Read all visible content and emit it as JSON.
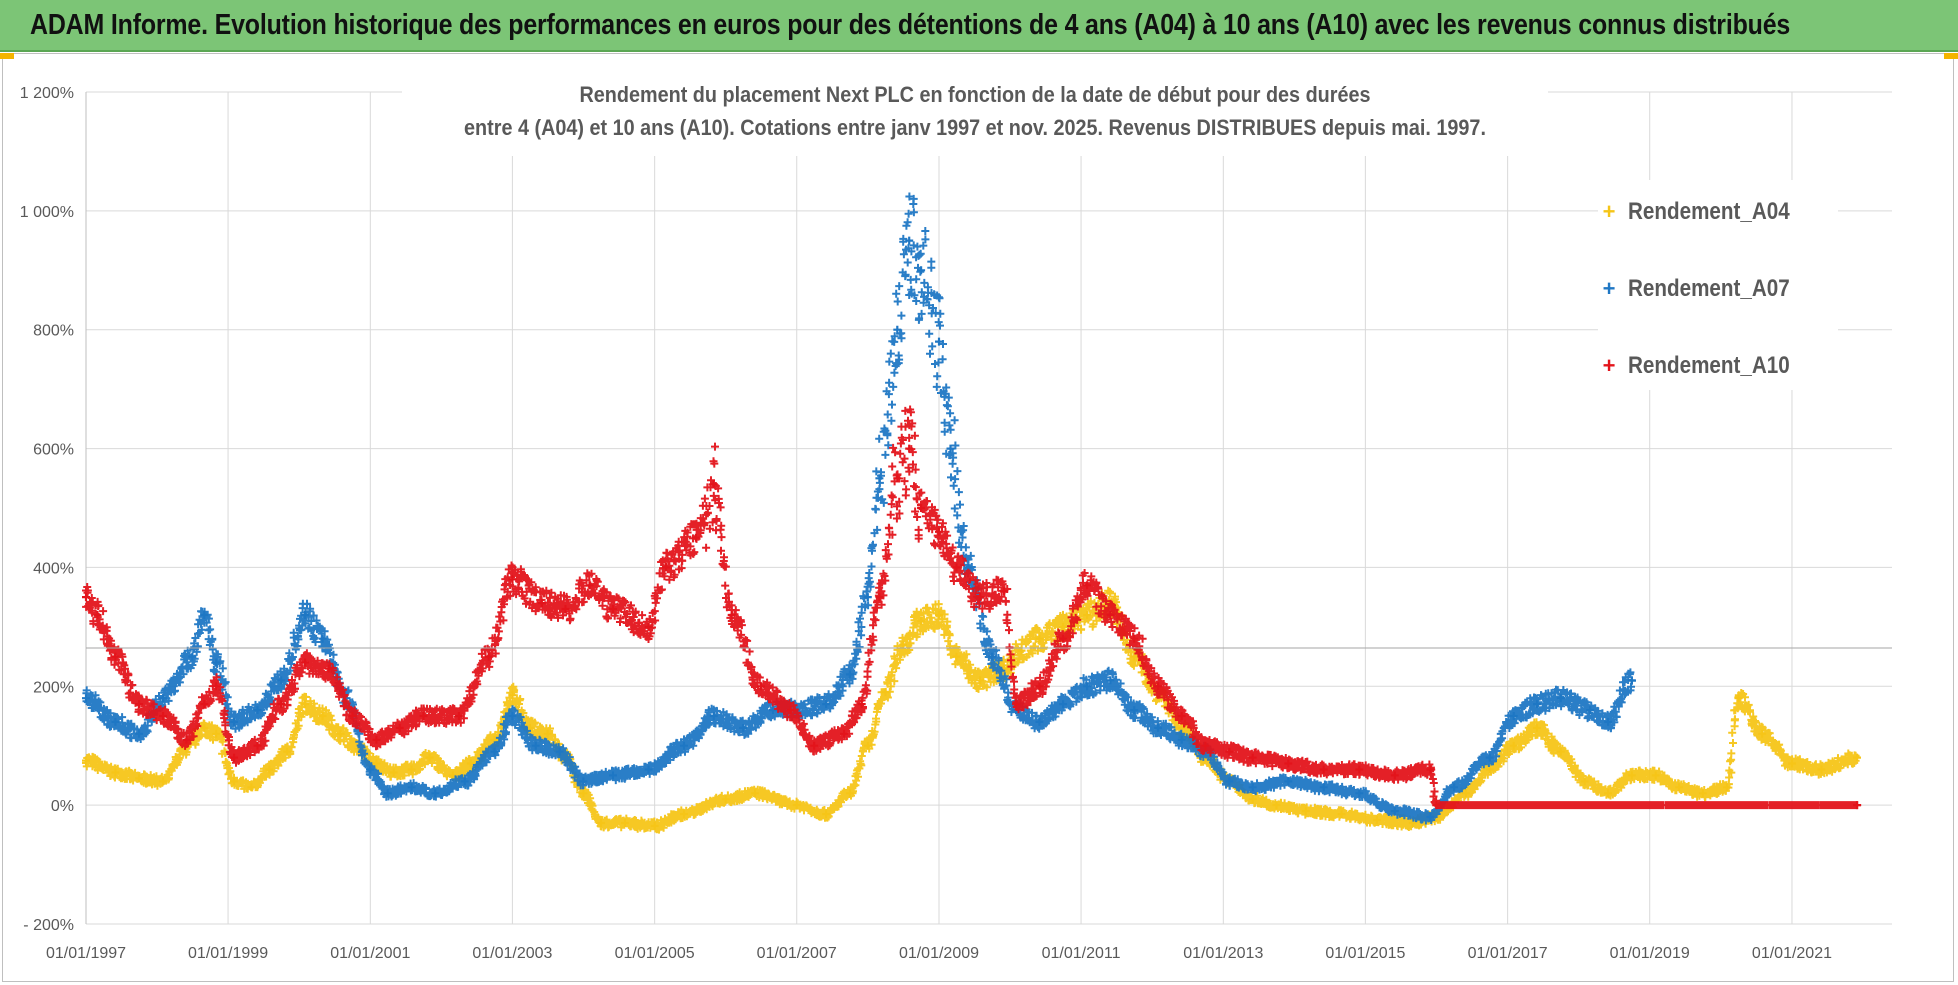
{
  "header": {
    "title": "ADAM Informe. Evolution historique des performances en euros pour des détentions de 4 ans (A04) à 10 ans (A10) avec les revenus connus distribués"
  },
  "chart_data": {
    "type": "scatter",
    "title_lines": [
      "Rendement du placement Next PLC en fonction de la date de début pour des durées",
      "entre 4 (A04) et 10 ans (A10). Cotations entre janv 1997 et nov. 2025. Revenus DISTRIBUES depuis mai. 1997."
    ],
    "xlabel": "",
    "ylabel": "",
    "x_range": [
      "1997-01-01",
      "2021-12-31"
    ],
    "ylim": [
      -200,
      1200
    ],
    "y_tick_values": [
      -200,
      0,
      200,
      400,
      600,
      800,
      1000,
      1200
    ],
    "y_tick_labels": [
      "- 200%",
      "0%",
      "200%",
      "400%",
      "600%",
      "800%",
      "1 000%",
      "1 200%"
    ],
    "x_tick_values": [
      "1997-01-01",
      "1999-01-01",
      "2001-01-01",
      "2003-01-01",
      "2005-01-01",
      "2007-01-01",
      "2009-01-01",
      "2011-01-01",
      "2013-01-01",
      "2015-01-01",
      "2017-01-01",
      "2019-01-01",
      "2021-01-01"
    ],
    "x_tick_labels": [
      "01/01/1997",
      "01/01/1999",
      "01/01/2001",
      "01/01/2003",
      "01/01/2005",
      "01/01/2007",
      "01/01/2009",
      "01/01/2011",
      "01/01/2013",
      "01/01/2015",
      "01/01/2017",
      "01/01/2019",
      "01/01/2021"
    ],
    "grid": true,
    "legend_position": "top-right",
    "series": [
      {
        "name": "Rendement_A04",
        "color": "#f5c518",
        "points": [
          [
            "1997-01-01",
            75
          ],
          [
            "1997-06-01",
            55
          ],
          [
            "1997-10-01",
            45
          ],
          [
            "1998-02-01",
            40
          ],
          [
            "1998-06-01",
            95
          ],
          [
            "1998-09-01",
            130
          ],
          [
            "1998-11-01",
            120
          ],
          [
            "1999-02-01",
            40
          ],
          [
            "1999-05-01",
            30
          ],
          [
            "1999-08-01",
            60
          ],
          [
            "1999-11-01",
            90
          ],
          [
            "2000-02-01",
            170
          ],
          [
            "2000-05-01",
            150
          ],
          [
            "2000-08-01",
            120
          ],
          [
            "2000-11-01",
            95
          ],
          [
            "2001-02-01",
            70
          ],
          [
            "2001-05-01",
            55
          ],
          [
            "2001-08-01",
            60
          ],
          [
            "2001-11-01",
            80
          ],
          [
            "2002-03-01",
            50
          ],
          [
            "2002-06-01",
            70
          ],
          [
            "2002-10-01",
            110
          ],
          [
            "2003-01-01",
            185
          ],
          [
            "2003-04-01",
            130
          ],
          [
            "2003-07-01",
            120
          ],
          [
            "2003-10-01",
            80
          ],
          [
            "2004-01-01",
            20
          ],
          [
            "2004-04-01",
            -30
          ],
          [
            "2004-08-01",
            -30
          ],
          [
            "2005-01-01",
            -35
          ],
          [
            "2005-06-01",
            -15
          ],
          [
            "2006-01-01",
            10
          ],
          [
            "2006-06-01",
            20
          ],
          [
            "2007-01-01",
            0
          ],
          [
            "2007-06-01",
            -15
          ],
          [
            "2007-10-01",
            20
          ],
          [
            "2008-01-01",
            100
          ],
          [
            "2008-04-01",
            190
          ],
          [
            "2008-07-01",
            270
          ],
          [
            "2008-10-01",
            310
          ],
          [
            "2009-01-01",
            320
          ],
          [
            "2009-04-01",
            250
          ],
          [
            "2009-08-01",
            210
          ],
          [
            "2009-12-01",
            230
          ],
          [
            "2010-03-01",
            260
          ],
          [
            "2010-06-01",
            280
          ],
          [
            "2010-10-01",
            300
          ],
          [
            "2011-02-01",
            320
          ],
          [
            "2011-06-01",
            340
          ],
          [
            "2011-10-01",
            250
          ],
          [
            "2012-02-01",
            190
          ],
          [
            "2012-06-01",
            130
          ],
          [
            "2012-10-01",
            80
          ],
          [
            "2013-02-01",
            40
          ],
          [
            "2013-06-01",
            10
          ],
          [
            "2013-10-01",
            0
          ],
          [
            "2014-03-01",
            -10
          ],
          [
            "2014-09-01",
            -15
          ],
          [
            "2015-03-01",
            -25
          ],
          [
            "2015-09-01",
            -30
          ],
          [
            "2016-01-01",
            -20
          ],
          [
            "2016-06-01",
            20
          ],
          [
            "2016-10-01",
            60
          ],
          [
            "2017-02-01",
            100
          ],
          [
            "2017-06-01",
            130
          ],
          [
            "2017-10-01",
            90
          ],
          [
            "2018-02-01",
            40
          ],
          [
            "2018-06-01",
            20
          ],
          [
            "2018-10-01",
            50
          ],
          [
            "2019-02-01",
            50
          ],
          [
            "2019-06-01",
            30
          ],
          [
            "2019-10-01",
            20
          ],
          [
            "2020-02-01",
            30
          ],
          [
            "2020-04-01",
            180
          ],
          [
            "2020-08-01",
            120
          ],
          [
            "2021-01-01",
            70
          ],
          [
            "2021-06-01",
            60
          ],
          [
            "2021-12-01",
            80
          ]
        ]
      },
      {
        "name": "Rendement_A07",
        "color": "#1f77c4",
        "points": [
          [
            "1997-01-01",
            180
          ],
          [
            "1997-06-01",
            140
          ],
          [
            "1997-10-01",
            120
          ],
          [
            "1998-02-01",
            180
          ],
          [
            "1998-07-01",
            250
          ],
          [
            "1998-09-01",
            320
          ],
          [
            "1998-11-01",
            240
          ],
          [
            "1999-02-01",
            140
          ],
          [
            "1999-06-01",
            160
          ],
          [
            "1999-10-01",
            210
          ],
          [
            "2000-02-01",
            320
          ],
          [
            "2000-05-01",
            280
          ],
          [
            "2000-09-01",
            180
          ],
          [
            "2001-01-01",
            60
          ],
          [
            "2001-04-01",
            20
          ],
          [
            "2001-08-01",
            30
          ],
          [
            "2001-12-01",
            20
          ],
          [
            "2002-05-01",
            40
          ],
          [
            "2002-10-01",
            90
          ],
          [
            "2003-01-01",
            150
          ],
          [
            "2003-05-01",
            100
          ],
          [
            "2003-09-01",
            90
          ],
          [
            "2004-01-01",
            40
          ],
          [
            "2004-06-01",
            50
          ],
          [
            "2004-12-01",
            60
          ],
          [
            "2005-06-01",
            100
          ],
          [
            "2005-11-01",
            150
          ],
          [
            "2006-04-01",
            130
          ],
          [
            "2006-09-01",
            160
          ],
          [
            "2007-01-01",
            160
          ],
          [
            "2007-06-01",
            170
          ],
          [
            "2007-10-01",
            220
          ],
          [
            "2008-01-01",
            350
          ],
          [
            "2008-03-01",
            550
          ],
          [
            "2008-06-01",
            800
          ],
          [
            "2008-08-01",
            950
          ],
          [
            "2008-10-01",
            900
          ],
          [
            "2009-01-01",
            780
          ],
          [
            "2009-03-01",
            600
          ],
          [
            "2009-06-01",
            400
          ],
          [
            "2009-10-01",
            250
          ],
          [
            "2010-02-01",
            160
          ],
          [
            "2010-06-01",
            140
          ],
          [
            "2010-10-01",
            170
          ],
          [
            "2011-02-01",
            200
          ],
          [
            "2011-06-01",
            210
          ],
          [
            "2011-10-01",
            160
          ],
          [
            "2012-02-01",
            130
          ],
          [
            "2012-06-01",
            110
          ],
          [
            "2012-10-01",
            90
          ],
          [
            "2013-02-01",
            40
          ],
          [
            "2013-06-01",
            30
          ],
          [
            "2013-12-01",
            40
          ],
          [
            "2014-06-01",
            30
          ],
          [
            "2014-12-01",
            20
          ],
          [
            "2015-06-01",
            -10
          ],
          [
            "2015-12-01",
            -20
          ],
          [
            "2016-04-01",
            30
          ],
          [
            "2016-10-01",
            80
          ],
          [
            "2017-02-01",
            150
          ],
          [
            "2017-06-01",
            170
          ],
          [
            "2017-10-01",
            180
          ],
          [
            "2018-03-01",
            160
          ],
          [
            "2018-06-01",
            140
          ],
          [
            "2018-10-01",
            210
          ]
        ]
      },
      {
        "name": "Rendement_A10",
        "color": "#e3141b",
        "points": [
          [
            "1997-01-01",
            350
          ],
          [
            "1997-03-01",
            320
          ],
          [
            "1997-06-01",
            250
          ],
          [
            "1997-10-01",
            170
          ],
          [
            "1998-02-01",
            150
          ],
          [
            "1998-06-01",
            110
          ],
          [
            "1998-09-01",
            170
          ],
          [
            "1998-11-01",
            200
          ],
          [
            "1999-02-01",
            80
          ],
          [
            "1999-06-01",
            100
          ],
          [
            "1999-10-01",
            170
          ],
          [
            "2000-02-01",
            240
          ],
          [
            "2000-06-01",
            230
          ],
          [
            "2000-10-01",
            150
          ],
          [
            "2001-02-01",
            110
          ],
          [
            "2001-06-01",
            130
          ],
          [
            "2001-10-01",
            150
          ],
          [
            "2002-04-01",
            150
          ],
          [
            "2002-09-01",
            250
          ],
          [
            "2003-01-01",
            380
          ],
          [
            "2003-06-01",
            340
          ],
          [
            "2003-10-01",
            330
          ],
          [
            "2004-02-01",
            370
          ],
          [
            "2004-06-01",
            330
          ],
          [
            "2004-12-01",
            300
          ],
          [
            "2005-03-01",
            400
          ],
          [
            "2005-08-01",
            450
          ],
          [
            "2005-11-01",
            540
          ],
          [
            "2006-02-01",
            320
          ],
          [
            "2006-07-01",
            200
          ],
          [
            "2006-12-01",
            160
          ],
          [
            "2007-04-01",
            100
          ],
          [
            "2007-09-01",
            120
          ],
          [
            "2007-12-01",
            170
          ],
          [
            "2008-03-01",
            350
          ],
          [
            "2008-06-01",
            550
          ],
          [
            "2008-08-01",
            600
          ],
          [
            "2008-10-01",
            500
          ],
          [
            "2009-01-01",
            460
          ],
          [
            "2009-04-01",
            400
          ],
          [
            "2009-08-01",
            350
          ],
          [
            "2009-12-01",
            360
          ],
          [
            "2010-02-01",
            170
          ],
          [
            "2010-06-01",
            200
          ],
          [
            "2010-10-01",
            280
          ],
          [
            "2011-02-01",
            370
          ],
          [
            "2011-06-01",
            320
          ],
          [
            "2011-10-01",
            280
          ],
          [
            "2012-02-01",
            200
          ],
          [
            "2012-06-01",
            150
          ],
          [
            "2012-10-01",
            100
          ],
          [
            "2013-02-01",
            90
          ],
          [
            "2013-06-01",
            80
          ],
          [
            "2013-12-01",
            70
          ],
          [
            "2014-06-01",
            60
          ],
          [
            "2014-12-01",
            60
          ],
          [
            "2015-06-01",
            50
          ],
          [
            "2015-12-01",
            60
          ],
          [
            "2016-01-01",
            0
          ],
          [
            "2021-12-01",
            0
          ]
        ]
      }
    ]
  }
}
